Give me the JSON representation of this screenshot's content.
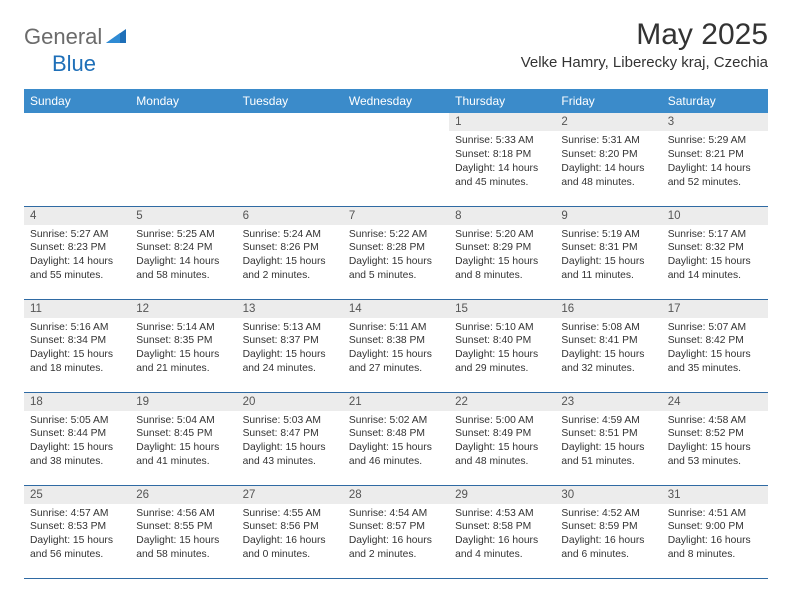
{
  "logo": {
    "part1": "General",
    "part2": "Blue"
  },
  "title": "May 2025",
  "location": "Velke Hamry, Liberecky kraj, Czechia",
  "colors": {
    "header_bg": "#3b8bca",
    "header_text": "#ffffff",
    "daynum_bg": "#ececec",
    "row_border": "#2f6aa3",
    "logo_gray": "#6b6b6b",
    "logo_blue": "#1e6fb8",
    "text": "#333333"
  },
  "weekdays": [
    "Sunday",
    "Monday",
    "Tuesday",
    "Wednesday",
    "Thursday",
    "Friday",
    "Saturday"
  ],
  "weeks": [
    [
      null,
      null,
      null,
      null,
      {
        "n": "1",
        "sr": "5:33 AM",
        "ss": "8:18 PM",
        "dl": "14 hours and 45 minutes."
      },
      {
        "n": "2",
        "sr": "5:31 AM",
        "ss": "8:20 PM",
        "dl": "14 hours and 48 minutes."
      },
      {
        "n": "3",
        "sr": "5:29 AM",
        "ss": "8:21 PM",
        "dl": "14 hours and 52 minutes."
      }
    ],
    [
      {
        "n": "4",
        "sr": "5:27 AM",
        "ss": "8:23 PM",
        "dl": "14 hours and 55 minutes."
      },
      {
        "n": "5",
        "sr": "5:25 AM",
        "ss": "8:24 PM",
        "dl": "14 hours and 58 minutes."
      },
      {
        "n": "6",
        "sr": "5:24 AM",
        "ss": "8:26 PM",
        "dl": "15 hours and 2 minutes."
      },
      {
        "n": "7",
        "sr": "5:22 AM",
        "ss": "8:28 PM",
        "dl": "15 hours and 5 minutes."
      },
      {
        "n": "8",
        "sr": "5:20 AM",
        "ss": "8:29 PM",
        "dl": "15 hours and 8 minutes."
      },
      {
        "n": "9",
        "sr": "5:19 AM",
        "ss": "8:31 PM",
        "dl": "15 hours and 11 minutes."
      },
      {
        "n": "10",
        "sr": "5:17 AM",
        "ss": "8:32 PM",
        "dl": "15 hours and 14 minutes."
      }
    ],
    [
      {
        "n": "11",
        "sr": "5:16 AM",
        "ss": "8:34 PM",
        "dl": "15 hours and 18 minutes."
      },
      {
        "n": "12",
        "sr": "5:14 AM",
        "ss": "8:35 PM",
        "dl": "15 hours and 21 minutes."
      },
      {
        "n": "13",
        "sr": "5:13 AM",
        "ss": "8:37 PM",
        "dl": "15 hours and 24 minutes."
      },
      {
        "n": "14",
        "sr": "5:11 AM",
        "ss": "8:38 PM",
        "dl": "15 hours and 27 minutes."
      },
      {
        "n": "15",
        "sr": "5:10 AM",
        "ss": "8:40 PM",
        "dl": "15 hours and 29 minutes."
      },
      {
        "n": "16",
        "sr": "5:08 AM",
        "ss": "8:41 PM",
        "dl": "15 hours and 32 minutes."
      },
      {
        "n": "17",
        "sr": "5:07 AM",
        "ss": "8:42 PM",
        "dl": "15 hours and 35 minutes."
      }
    ],
    [
      {
        "n": "18",
        "sr": "5:05 AM",
        "ss": "8:44 PM",
        "dl": "15 hours and 38 minutes."
      },
      {
        "n": "19",
        "sr": "5:04 AM",
        "ss": "8:45 PM",
        "dl": "15 hours and 41 minutes."
      },
      {
        "n": "20",
        "sr": "5:03 AM",
        "ss": "8:47 PM",
        "dl": "15 hours and 43 minutes."
      },
      {
        "n": "21",
        "sr": "5:02 AM",
        "ss": "8:48 PM",
        "dl": "15 hours and 46 minutes."
      },
      {
        "n": "22",
        "sr": "5:00 AM",
        "ss": "8:49 PM",
        "dl": "15 hours and 48 minutes."
      },
      {
        "n": "23",
        "sr": "4:59 AM",
        "ss": "8:51 PM",
        "dl": "15 hours and 51 minutes."
      },
      {
        "n": "24",
        "sr": "4:58 AM",
        "ss": "8:52 PM",
        "dl": "15 hours and 53 minutes."
      }
    ],
    [
      {
        "n": "25",
        "sr": "4:57 AM",
        "ss": "8:53 PM",
        "dl": "15 hours and 56 minutes."
      },
      {
        "n": "26",
        "sr": "4:56 AM",
        "ss": "8:55 PM",
        "dl": "15 hours and 58 minutes."
      },
      {
        "n": "27",
        "sr": "4:55 AM",
        "ss": "8:56 PM",
        "dl": "16 hours and 0 minutes."
      },
      {
        "n": "28",
        "sr": "4:54 AM",
        "ss": "8:57 PM",
        "dl": "16 hours and 2 minutes."
      },
      {
        "n": "29",
        "sr": "4:53 AM",
        "ss": "8:58 PM",
        "dl": "16 hours and 4 minutes."
      },
      {
        "n": "30",
        "sr": "4:52 AM",
        "ss": "8:59 PM",
        "dl": "16 hours and 6 minutes."
      },
      {
        "n": "31",
        "sr": "4:51 AM",
        "ss": "9:00 PM",
        "dl": "16 hours and 8 minutes."
      }
    ]
  ],
  "labels": {
    "sunrise": "Sunrise: ",
    "sunset": "Sunset: ",
    "daylight": "Daylight: "
  }
}
